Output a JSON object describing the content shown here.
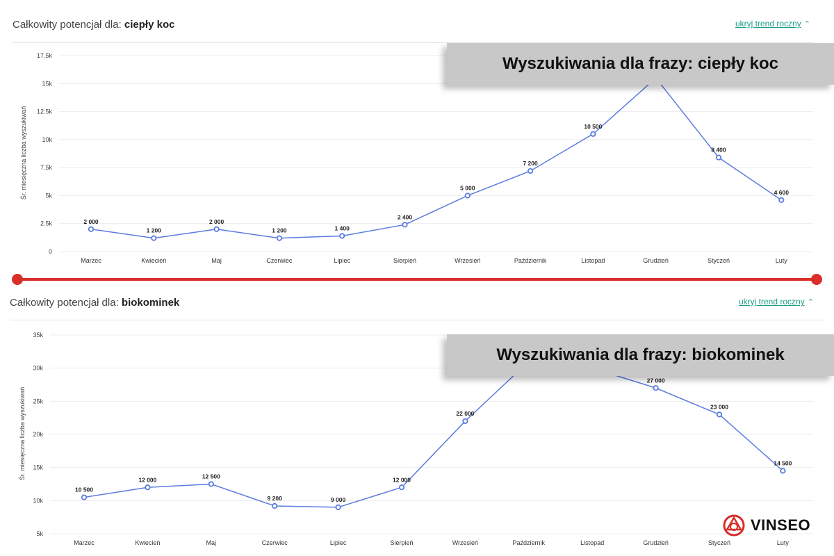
{
  "charts_meta": [
    {
      "title_prefix": "Całkowity potencjał dla: ",
      "title_phrase": "ciepły koc",
      "toggle_label": "ukryj trend roczny",
      "banner": "Wyszukiwania dla frazy: ciepły koc"
    },
    {
      "title_prefix": "Całkowity potencjał dla: ",
      "title_phrase": "biokominek",
      "toggle_label": "ukryj trend roczny",
      "banner": "Wyszukiwania dla frazy: biokominek"
    }
  ],
  "brand": {
    "name": "VINSEO",
    "color": "#d92e2a"
  },
  "colors": {
    "line": "#5b7be0",
    "grid": "#ececec",
    "link": "#1a9c86",
    "divider": "#d92e2a"
  },
  "chart_data": [
    {
      "type": "line",
      "title": "Całkowity potencjał dla: ciepły koc",
      "ylabel": "Śr. miesięczna liczba wyszukiwań",
      "xlabel": "",
      "categories": [
        "Marzec",
        "Kwiecień",
        "Maj",
        "Czerwiec",
        "Lipiec",
        "Sierpień",
        "Wrzesień",
        "Październik",
        "Listopad",
        "Grudzień",
        "Styczeń",
        "Luty"
      ],
      "values": [
        2000,
        1200,
        2000,
        1200,
        1400,
        2400,
        5000,
        7200,
        10500,
        15500,
        8400,
        4600
      ],
      "data_labels": [
        "2 000",
        "1 200",
        "2 000",
        "1 200",
        "1 400",
        "2 400",
        "5 000",
        "7 200",
        "10 500",
        "",
        "8 400",
        "4 600"
      ],
      "yticks": [
        0,
        2500,
        5000,
        7500,
        10000,
        12500,
        15000,
        17500
      ],
      "ytick_labels": [
        "0",
        "2.5k",
        "5k",
        "7.5k",
        "10k",
        "12.5k",
        "15k",
        "17.5k"
      ],
      "ylim": [
        0,
        17500
      ],
      "grid": true,
      "legend": "none"
    },
    {
      "type": "line",
      "title": "Całkowity potencjał dla: biokominek",
      "ylabel": "Śr. miesięczna liczba wyszukiwań",
      "xlabel": "",
      "categories": [
        "Marzec",
        "Kwiecień",
        "Maj",
        "Czerwiec",
        "Lipiec",
        "Sierpień",
        "Wrzesień",
        "Październik",
        "Listopad",
        "Grudzień",
        "Styczeń",
        "Luty"
      ],
      "values": [
        10500,
        12000,
        12500,
        9200,
        9000,
        12000,
        22000,
        31000,
        30000,
        27000,
        23000,
        14500
      ],
      "data_labels": [
        "10 500",
        "12 000",
        "12 500",
        "9 200",
        "9 000",
        "12 000",
        "22 000",
        "",
        "",
        "27 000",
        "23 000",
        "14 500"
      ],
      "yticks": [
        5000,
        10000,
        15000,
        20000,
        25000,
        30000,
        35000
      ],
      "ytick_labels": [
        "5k",
        "10k",
        "15k",
        "20k",
        "25k",
        "30k",
        "35k"
      ],
      "ylim": [
        5000,
        35000
      ],
      "grid": true,
      "legend": "none"
    }
  ]
}
